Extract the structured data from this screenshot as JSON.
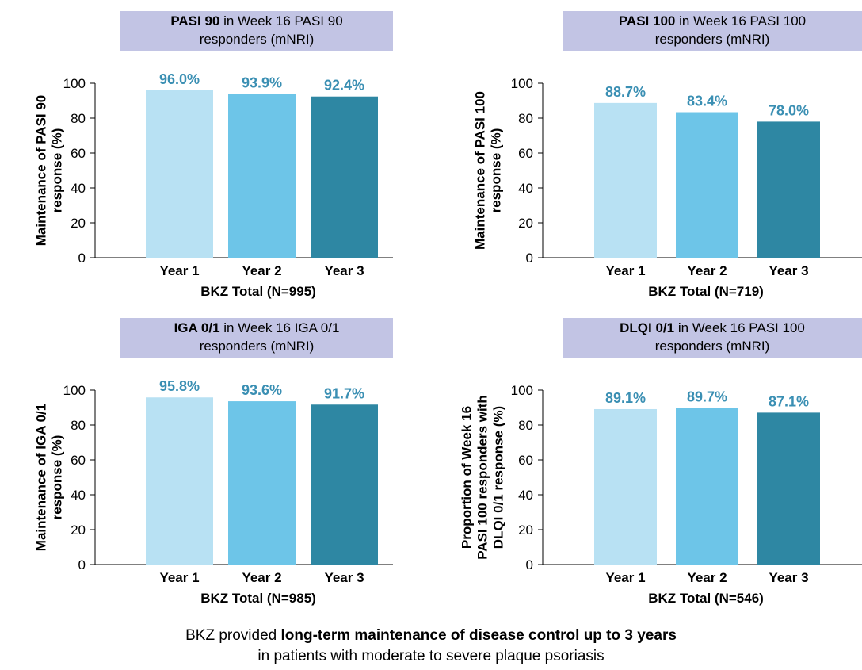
{
  "chart_data": [
    {
      "type": "bar",
      "header_bold": "PASI 90",
      "header_rest": " in Week 16 PASI 90",
      "header_line2": "responders (mNRI)",
      "ylabel_lines": [
        "Maintenance of PASI 90",
        "response (%)"
      ],
      "xlabel": "BKZ Total (N=995)",
      "categories": [
        "Year 1",
        "Year 2",
        "Year 3"
      ],
      "values": [
        96.0,
        93.9,
        92.4
      ],
      "value_labels": [
        "96.0%",
        "93.9%",
        "92.4%"
      ],
      "ylim": [
        0,
        100
      ],
      "yticks": [
        "0",
        "20",
        "40",
        "60",
        "80",
        "100"
      ]
    },
    {
      "type": "bar",
      "header_bold": "PASI 100",
      "header_rest": " in Week 16 PASI 100",
      "header_line2": "responders (mNRI)",
      "ylabel_lines": [
        "Maintenance of PASI 100",
        "response (%)"
      ],
      "xlabel": "BKZ Total (N=719)",
      "categories": [
        "Year 1",
        "Year 2",
        "Year 3"
      ],
      "values": [
        88.7,
        83.4,
        78.0
      ],
      "value_labels": [
        "88.7%",
        "83.4%",
        "78.0%"
      ],
      "ylim": [
        0,
        100
      ],
      "yticks": [
        "0",
        "20",
        "40",
        "60",
        "80",
        "100"
      ]
    },
    {
      "type": "bar",
      "header_bold": "IGA 0/1",
      "header_rest": " in Week 16 IGA 0/1",
      "header_line2": "responders (mNRI)",
      "ylabel_lines": [
        "Maintenance of IGA 0/1",
        "response (%)"
      ],
      "xlabel": "BKZ Total (N=985)",
      "categories": [
        "Year 1",
        "Year 2",
        "Year 3"
      ],
      "values": [
        95.8,
        93.6,
        91.7
      ],
      "value_labels": [
        "95.8%",
        "93.6%",
        "91.7%"
      ],
      "ylim": [
        0,
        100
      ],
      "yticks": [
        "0",
        "20",
        "40",
        "60",
        "80",
        "100"
      ]
    },
    {
      "type": "bar",
      "header_bold": "DLQI 0/1",
      "header_rest": " in Week 16 PASI 100",
      "header_line2": "responders (mNRI)",
      "ylabel_lines": [
        "Proportion of Week 16",
        "PASI 100 responders with",
        "DLQI 0/1 response (%)"
      ],
      "xlabel": "BKZ Total (N=546)",
      "categories": [
        "Year 1",
        "Year 2",
        "Year 3"
      ],
      "values": [
        89.1,
        89.7,
        87.1
      ],
      "value_labels": [
        "89.1%",
        "89.7%",
        "87.1%"
      ],
      "ylim": [
        0,
        100
      ],
      "yticks": [
        "0",
        "20",
        "40",
        "60",
        "80",
        "100"
      ]
    }
  ],
  "colors": {
    "bars": [
      "#b8e1f3",
      "#6dc5e8",
      "#2e87a3"
    ],
    "value_label": "#3a8fb3",
    "header_bg": "#c2c4e4",
    "axis": "#000000"
  },
  "footer": {
    "line1_pre": "BKZ provided ",
    "line1_bold": "long-term maintenance of disease control up to 3 years",
    "line2": "in patients with moderate to severe plaque psoriasis"
  }
}
